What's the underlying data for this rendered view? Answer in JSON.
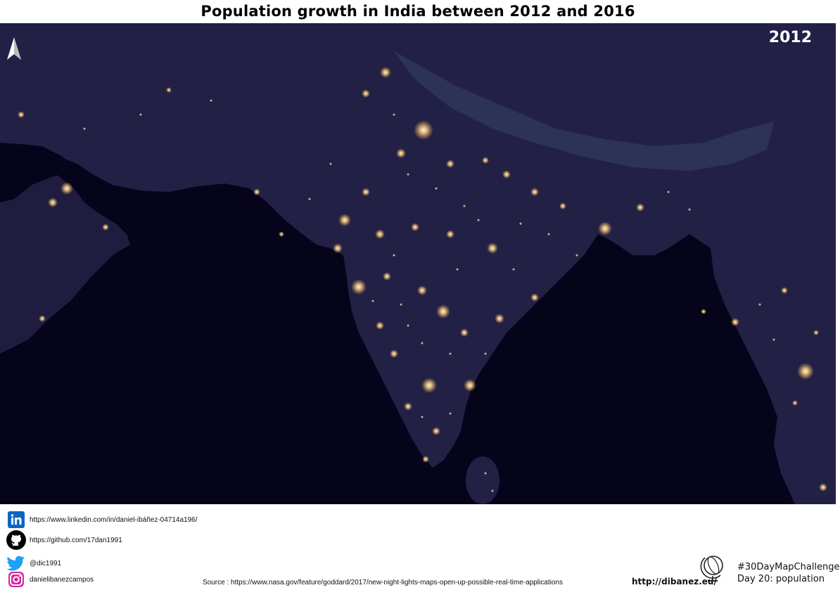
{
  "title": "Population growth in India between 2012 and 2016",
  "map": {
    "year": "2012",
    "north_arrow_icon": "north-arrow-icon",
    "colors": {
      "ocean": "#05041a",
      "land": "#232046",
      "land_dark": "#1a1838",
      "snow": "#3a4466",
      "lights": "#ffd98a"
    }
  },
  "footer": {
    "linkedin": {
      "icon": "linkedin-icon",
      "text": "https://www.linkedin.com/in/daniel-ibáñez-04714a196/"
    },
    "github": {
      "icon": "github-icon",
      "text": "https://github.com/17dan1991"
    },
    "twitter": {
      "icon": "twitter-icon",
      "text": "@dic1991"
    },
    "instagram": {
      "icon": "instagram-icon",
      "text": "danielibanezcampos"
    },
    "source": "Source :  https://www.nasa.gov/feature/goddard/2017/new-night-lights-maps-open-up-possible-real-time-applications",
    "site": "http://dibanez.eu/",
    "globe_icon": "globe-icon",
    "challenge_line1": "#30DayMapChallenge",
    "challenge_line2": "Day 20: population"
  }
}
